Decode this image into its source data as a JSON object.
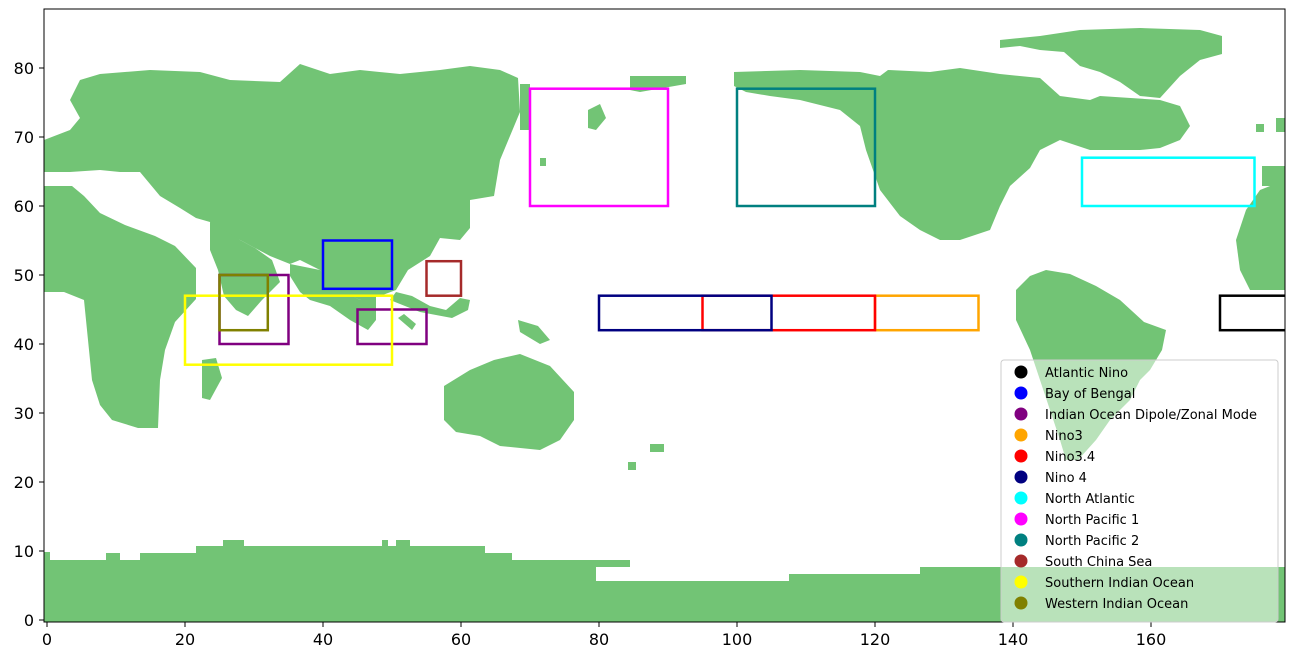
{
  "chart_data": {
    "type": "map",
    "x_axis": {
      "range": [
        0,
        180
      ],
      "ticks": [
        0,
        20,
        40,
        60,
        80,
        100,
        120,
        140,
        160
      ]
    },
    "y_axis": {
      "range": [
        0,
        88
      ],
      "ticks": [
        0,
        10,
        20,
        30,
        40,
        50,
        60,
        70,
        80
      ]
    },
    "land_color": "#72c475",
    "legend": {
      "placement": "lower-right"
    },
    "regions": [
      {
        "name": "Atlantic Nino",
        "color": "#000000",
        "boxes": [
          [
            170,
            180,
            42,
            47
          ]
        ]
      },
      {
        "name": "Bay of Bengal",
        "color": "#0000ff",
        "boxes": [
          [
            40,
            50,
            48,
            55
          ]
        ]
      },
      {
        "name": "Indian Ocean Dipole/Zonal Mode",
        "color": "#800080",
        "boxes": [
          [
            25,
            35,
            40,
            50
          ],
          [
            45,
            55,
            40,
            45
          ]
        ]
      },
      {
        "name": "Nino3",
        "color": "#ffa500",
        "boxes": [
          [
            120,
            135,
            42,
            47
          ]
        ]
      },
      {
        "name": "Nino3.4",
        "color": "#ff0000",
        "boxes": [
          [
            95,
            120,
            42,
            47
          ]
        ]
      },
      {
        "name": "Nino 4",
        "color": "#000080",
        "boxes": [
          [
            80,
            105,
            42,
            47
          ]
        ]
      },
      {
        "name": "North Atlantic",
        "color": "#00ffff",
        "boxes": [
          [
            150,
            175,
            60,
            67
          ]
        ]
      },
      {
        "name": "North Pacific 1",
        "color": "#ff00ff",
        "boxes": [
          [
            70,
            90,
            60,
            77
          ]
        ]
      },
      {
        "name": "North Pacific 2",
        "color": "#008080",
        "boxes": [
          [
            100,
            120,
            60,
            77
          ]
        ]
      },
      {
        "name": "South China Sea",
        "color": "#a52a2a",
        "boxes": [
          [
            55,
            60,
            47,
            52
          ]
        ]
      },
      {
        "name": "Southern Indian Ocean",
        "color": "#ffff00",
        "boxes": [
          [
            20,
            50,
            37,
            47
          ]
        ]
      },
      {
        "name": "Western Indian Ocean",
        "color": "#808000",
        "boxes": [
          [
            25,
            32,
            42,
            50
          ]
        ]
      }
    ]
  }
}
